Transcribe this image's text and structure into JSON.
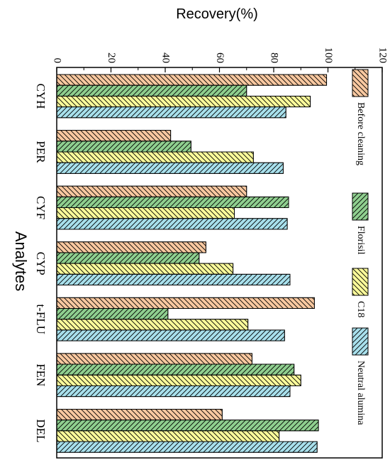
{
  "chart_data": {
    "type": "bar",
    "orientation": "horizontal",
    "ylabel": "Recovery(%)",
    "xlabel": "Analytes",
    "ylim": [
      0,
      120
    ],
    "ticks": [
      0,
      20,
      40,
      60,
      80,
      100,
      120
    ],
    "categories": [
      "CYH",
      "PER",
      "CYF",
      "CYP",
      "t-FLU",
      "FEN",
      "DEL"
    ],
    "series": [
      {
        "name": "Before cleaning",
        "color": "#f8c8a0",
        "values": [
          99.5,
          42,
          70,
          55,
          95,
          72,
          61
        ]
      },
      {
        "name": "Florisil",
        "color": "#8fcf8f",
        "values": [
          70,
          49.5,
          85.5,
          52.5,
          41,
          87.5,
          96.5
        ]
      },
      {
        "name": "C18",
        "color": "#fafa9a",
        "values": [
          93.5,
          72.5,
          65.5,
          65,
          70.5,
          90,
          82
        ]
      },
      {
        "name": "Neutral alumina",
        "color": "#a8e0ec",
        "values": [
          84.5,
          83.5,
          85,
          86,
          84,
          86,
          96
        ]
      }
    ],
    "grid": false,
    "legend_position": "right"
  }
}
